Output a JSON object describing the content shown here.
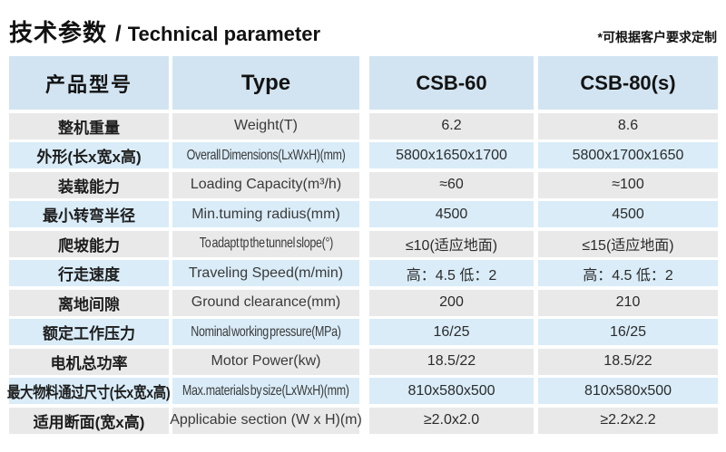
{
  "page": {
    "title_cn": "技术参数",
    "title_sep": "/",
    "title_en": "Technical parameter",
    "note": "*可根据客户要求定制"
  },
  "colors": {
    "header_bg": "#d2e4f1",
    "row_blue": "#d9ecf8",
    "row_gray": "#e9e9e9",
    "text": "#222222"
  },
  "table": {
    "header": {
      "product_model": "产品型号",
      "type": "Type",
      "csb60": "CSB-60",
      "csb80": "CSB-80(s)"
    },
    "rows": [
      {
        "cn": "整机重量",
        "en": "Weight(T)",
        "csb60": "6.2",
        "csb80": "8.6"
      },
      {
        "cn": "外形(长x宽x高)",
        "en": "Overall Dimensions(LxWxH)(mm)",
        "csb60": "5800x1650x1700",
        "csb80": "5800x1700x1650"
      },
      {
        "cn": "装载能力",
        "en": "Loading Capacity(m³/h)",
        "csb60": "≈60",
        "csb80": "≈100"
      },
      {
        "cn": "最小转弯半径",
        "en": "Min.tuming radius(mm)",
        "csb60": "4500",
        "csb80": "4500"
      },
      {
        "cn": "爬坡能力",
        "en": "To adapt tp the tunnel slope(°)",
        "csb60": "≤10(适应地面)",
        "csb80": "≤15(适应地面)"
      },
      {
        "cn": "行走速度",
        "en": "Traveling Speed(m/min)",
        "csb60": "高：4.5 低：2",
        "csb80": "高：4.5 低：2"
      },
      {
        "cn": "离地间隙",
        "en": "Ground clearance(mm)",
        "csb60": "200",
        "csb80": "210"
      },
      {
        "cn": "额定工作压力",
        "en": "Nominal working pressure(MPa)",
        "csb60": "16/25",
        "csb80": "16/25"
      },
      {
        "cn": "电机总功率",
        "en": "Motor Power(kw)",
        "csb60": "18.5/22",
        "csb80": "18.5/22"
      },
      {
        "cn": "最大物料通过尺寸(长x宽x高)",
        "en": "Max.materials by size(LxWxH)(mm)",
        "csb60": "810x580x500",
        "csb80": "810x580x500"
      },
      {
        "cn": "适用断面(宽x高)",
        "en": "Applicabie section (W x H)(m)",
        "csb60": "≥2.0x2.0",
        "csb80": "≥2.2x2.2"
      }
    ]
  }
}
